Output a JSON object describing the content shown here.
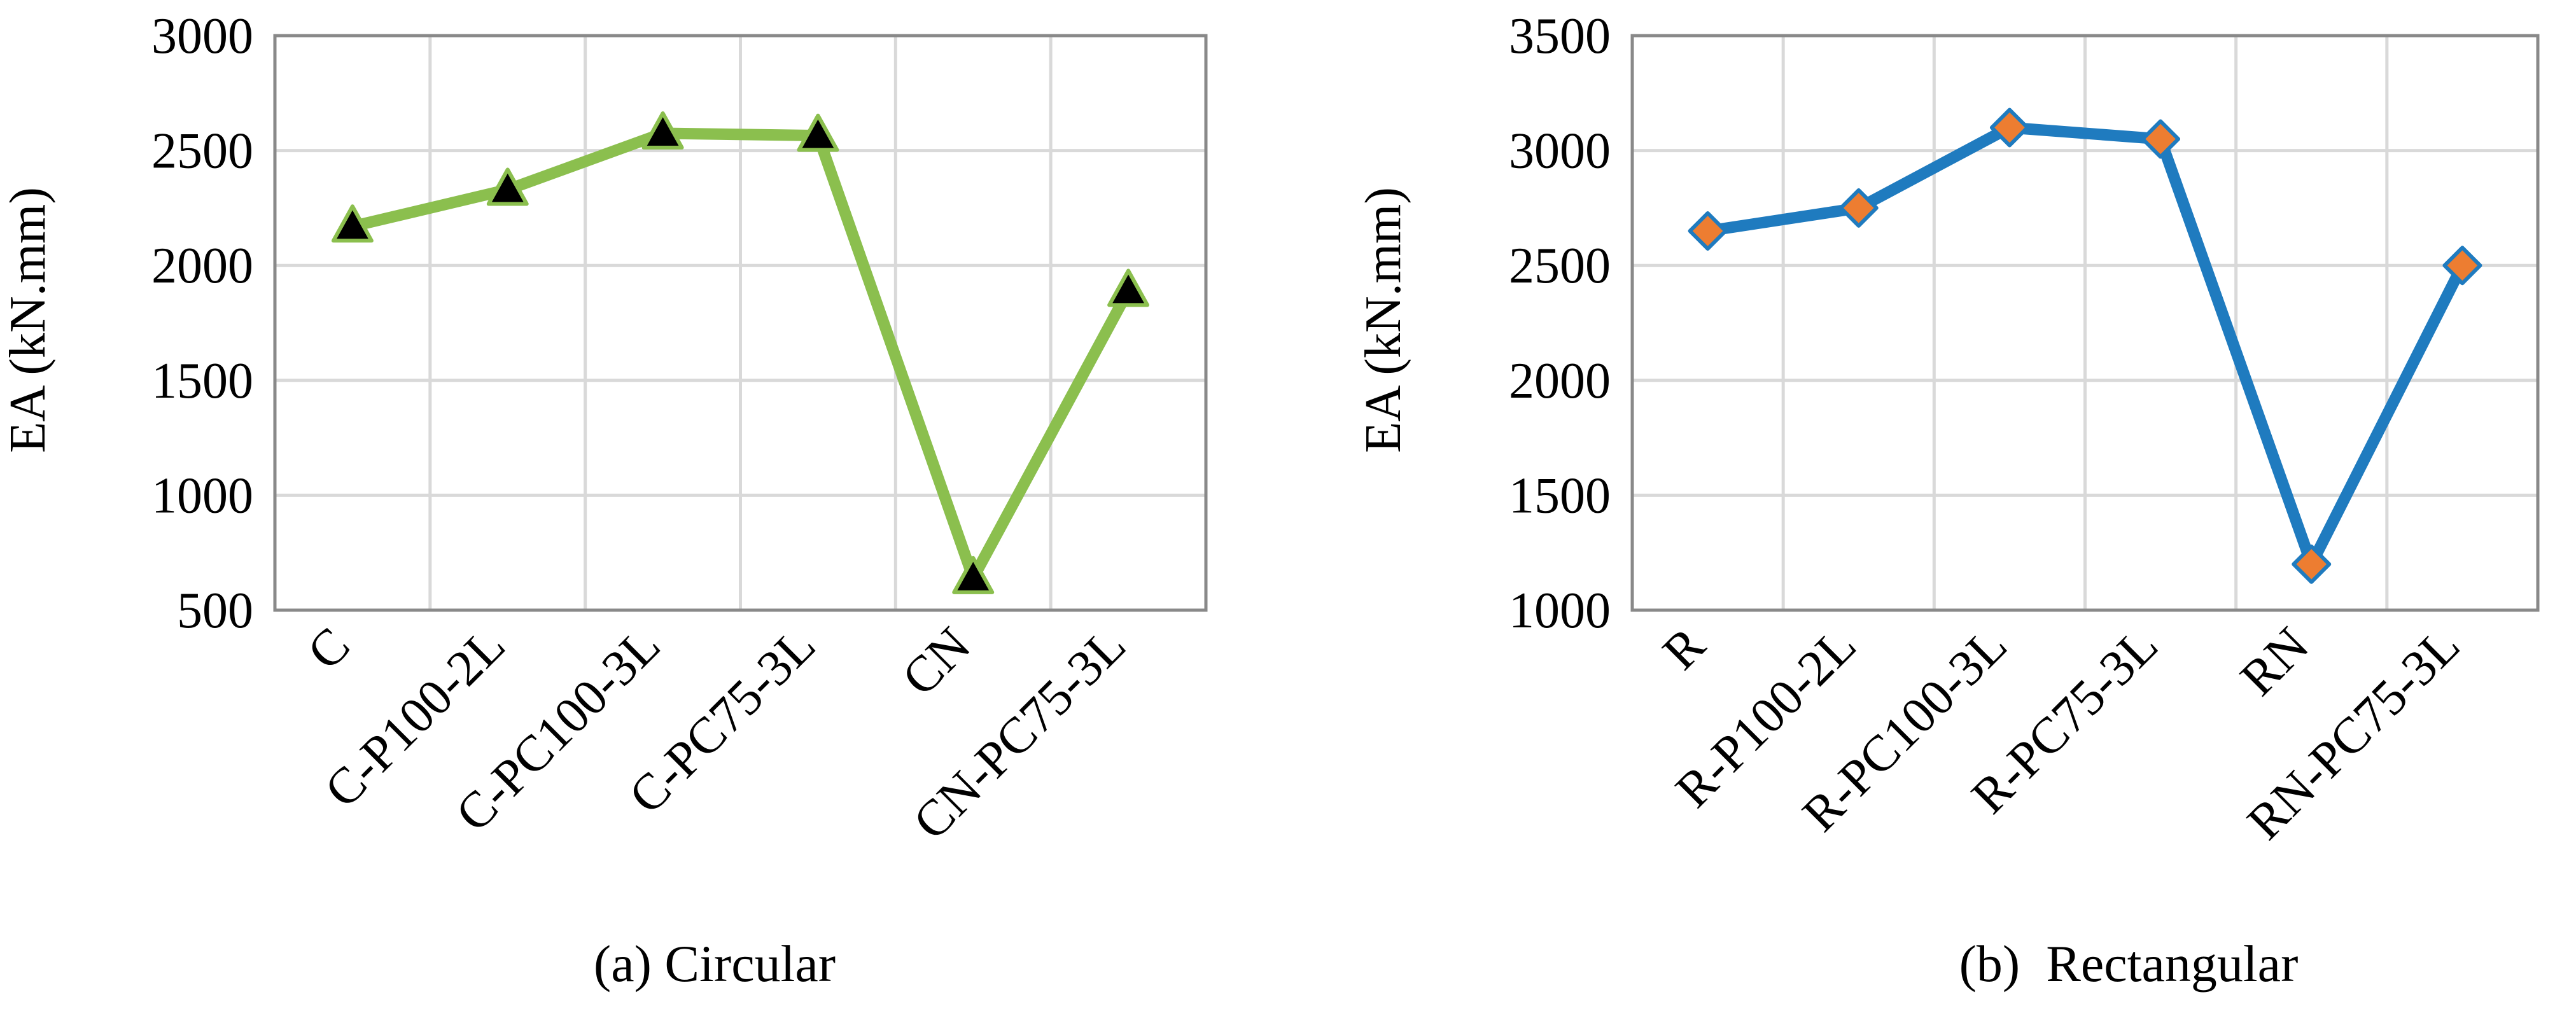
{
  "chart_data": [
    {
      "type": "line",
      "caption": "(a) Circular",
      "ylabel": "EA (kN.mm)",
      "xlabel": "",
      "ylim": [
        500,
        3000
      ],
      "yticks": [
        "500",
        "1000",
        "1500",
        "2000",
        "2500",
        "3000"
      ],
      "categories": [
        "C",
        "C-P100-2L",
        "C-PC100-3L",
        "C-PC75-3L",
        "CN",
        "CN-PC75-3L"
      ],
      "series": [
        {
          "values": [
            2170,
            2330,
            2575,
            2565,
            640,
            1890
          ],
          "line_color": "#8bbf4e",
          "marker": "triangle",
          "marker_fill": "#000000",
          "marker_stroke": "#8bbf4e"
        }
      ],
      "grid": true,
      "legend": "none"
    },
    {
      "type": "line",
      "caption": "(b)  Rectangular",
      "ylabel": "EA (kN.mm)",
      "xlabel": "",
      "ylim": [
        1000,
        3500
      ],
      "yticks": [
        "1000",
        "1500",
        "2000",
        "2500",
        "3000",
        "3500"
      ],
      "categories": [
        "R",
        "R-P100-2L",
        "R-PC100-3L",
        "R-PC75-3L",
        "RN",
        "RN-PC75-3L"
      ],
      "series": [
        {
          "values": [
            2650,
            2750,
            3100,
            3050,
            1200,
            2500
          ],
          "line_color": "#1f7bbf",
          "marker": "diamond",
          "marker_fill": "#ed7d31",
          "marker_stroke": "#1f7bbf"
        }
      ],
      "grid": true,
      "legend": "none"
    }
  ]
}
